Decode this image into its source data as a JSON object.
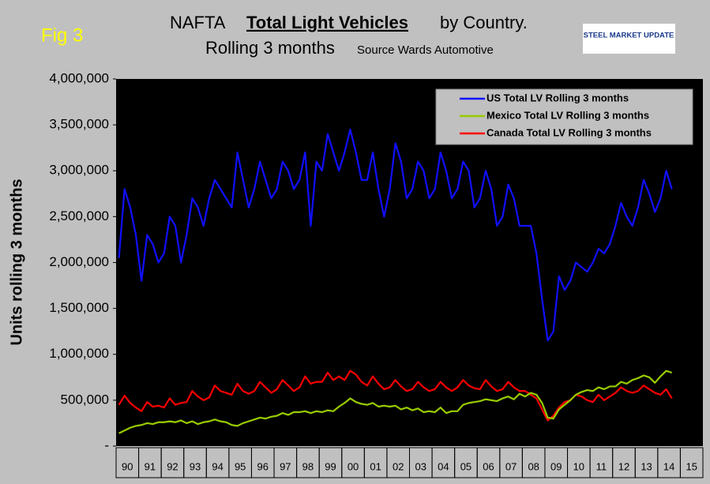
{
  "chart_data": {
    "type": "line",
    "figure_label": "Fig 3",
    "title": [
      "NAFTA",
      "Total Light Vehicles",
      "by Country."
    ],
    "subtitle": "Rolling 3 months",
    "source": "Source Wards Automotive",
    "logo": "STEEL MARKET UPDATE",
    "y_label": "Units rolling 3 months",
    "ylim": [
      0,
      4000000
    ],
    "yticks": [
      {
        "value": 0,
        "label": "-"
      },
      {
        "value": 500000,
        "label": "500,000"
      },
      {
        "value": 1000000,
        "label": "1,000,000"
      },
      {
        "value": 1500000,
        "label": "1,500,000"
      },
      {
        "value": 2000000,
        "label": "2,000,000"
      },
      {
        "value": 2500000,
        "label": "2,500,000"
      },
      {
        "value": 3000000,
        "label": "3,000,000"
      },
      {
        "value": 3500000,
        "label": "3,500,000"
      },
      {
        "value": 4000000,
        "label": "4,000,000"
      }
    ],
    "grid": false,
    "legend": "upper right",
    "categories": [
      "90",
      null,
      null,
      null,
      "91",
      null,
      null,
      null,
      "92",
      null,
      null,
      null,
      "93",
      null,
      null,
      null,
      "94",
      null,
      null,
      null,
      "95",
      null,
      null,
      null,
      "96",
      null,
      null,
      null,
      "97",
      null,
      null,
      null,
      "98",
      null,
      null,
      null,
      "99",
      null,
      null,
      null,
      "00",
      null,
      null,
      null,
      "01",
      null,
      null,
      null,
      "02",
      null,
      null,
      null,
      "03",
      null,
      null,
      null,
      "04",
      null,
      null,
      null,
      "05",
      null,
      null,
      null,
      "06",
      null,
      null,
      null,
      "07",
      null,
      null,
      null,
      "08",
      null,
      null,
      null,
      "09",
      null,
      null,
      null,
      "10",
      null,
      null,
      null,
      "11",
      null,
      null,
      null,
      "12",
      null,
      null,
      null,
      "13",
      null,
      null,
      null,
      "14",
      null,
      null,
      null,
      "15",
      null,
      null,
      null
    ],
    "series": [
      {
        "name": "US Total LV Rolling 3 months",
        "color": "#1010ff",
        "values": [
          2050000,
          2800000,
          2600000,
          2300000,
          1800000,
          2300000,
          2200000,
          2000000,
          2100000,
          2500000,
          2400000,
          2000000,
          2300000,
          2700000,
          2600000,
          2400000,
          2700000,
          2900000,
          2800000,
          2700000,
          2600000,
          3200000,
          2900000,
          2600000,
          2800000,
          3100000,
          2900000,
          2700000,
          2800000,
          3100000,
          3000000,
          2800000,
          2900000,
          3200000,
          2400000,
          3100000,
          3000000,
          3400000,
          3200000,
          3000000,
          3200000,
          3450000,
          3200000,
          2900000,
          2900000,
          3200000,
          2800000,
          2500000,
          2800000,
          3300000,
          3100000,
          2700000,
          2800000,
          3100000,
          3000000,
          2700000,
          2800000,
          3200000,
          3000000,
          2700000,
          2800000,
          3100000,
          3000000,
          2600000,
          2700000,
          3000000,
          2800000,
          2400000,
          2500000,
          2850000,
          2700000,
          2400000,
          2400000,
          2400000,
          2100000,
          1600000,
          1150000,
          1250000,
          1850000,
          1700000,
          1800000,
          2000000,
          1950000,
          1900000,
          2000000,
          2150000,
          2100000,
          2200000,
          2400000,
          2650000,
          2500000,
          2400000,
          2600000,
          2900000,
          2750000,
          2550000,
          2700000,
          3000000,
          2800000,
          null,
          null,
          null,
          null,
          null
        ]
      },
      {
        "name": "Mexico Total LV Rolling 3 months",
        "color": "#99cc00",
        "values": [
          140000,
          170000,
          200000,
          220000,
          230000,
          250000,
          240000,
          260000,
          260000,
          270000,
          260000,
          280000,
          250000,
          270000,
          240000,
          260000,
          270000,
          290000,
          270000,
          260000,
          230000,
          220000,
          250000,
          270000,
          290000,
          310000,
          300000,
          320000,
          330000,
          360000,
          340000,
          370000,
          370000,
          380000,
          360000,
          380000,
          370000,
          390000,
          380000,
          430000,
          470000,
          520000,
          480000,
          460000,
          450000,
          470000,
          430000,
          440000,
          430000,
          440000,
          400000,
          420000,
          390000,
          410000,
          370000,
          380000,
          370000,
          420000,
          360000,
          380000,
          380000,
          450000,
          470000,
          480000,
          490000,
          510000,
          500000,
          490000,
          520000,
          540000,
          510000,
          570000,
          540000,
          580000,
          560000,
          470000,
          310000,
          300000,
          400000,
          450000,
          500000,
          560000,
          590000,
          610000,
          600000,
          640000,
          620000,
          650000,
          650000,
          700000,
          680000,
          720000,
          740000,
          770000,
          750000,
          690000,
          760000,
          820000,
          800000,
          null,
          null,
          null,
          null,
          null
        ]
      },
      {
        "name": "Canada Total LV Rolling 3 months",
        "color": "#ff0000",
        "values": [
          450000,
          550000,
          470000,
          420000,
          380000,
          480000,
          430000,
          440000,
          420000,
          520000,
          450000,
          470000,
          480000,
          600000,
          540000,
          500000,
          530000,
          660000,
          600000,
          580000,
          560000,
          680000,
          600000,
          570000,
          600000,
          700000,
          640000,
          580000,
          620000,
          720000,
          660000,
          600000,
          640000,
          760000,
          680000,
          700000,
          700000,
          800000,
          720000,
          760000,
          720000,
          820000,
          780000,
          700000,
          660000,
          760000,
          680000,
          620000,
          640000,
          720000,
          650000,
          600000,
          620000,
          700000,
          640000,
          600000,
          620000,
          700000,
          640000,
          600000,
          640000,
          720000,
          660000,
          630000,
          620000,
          720000,
          650000,
          600000,
          620000,
          700000,
          640000,
          600000,
          600000,
          560000,
          520000,
          400000,
          280000,
          330000,
          420000,
          480000,
          500000,
          560000,
          540000,
          500000,
          480000,
          560000,
          500000,
          540000,
          580000,
          640000,
          600000,
          580000,
          600000,
          660000,
          620000,
          580000,
          560000,
          620000,
          520000,
          null,
          null,
          null,
          null,
          null
        ]
      }
    ]
  }
}
